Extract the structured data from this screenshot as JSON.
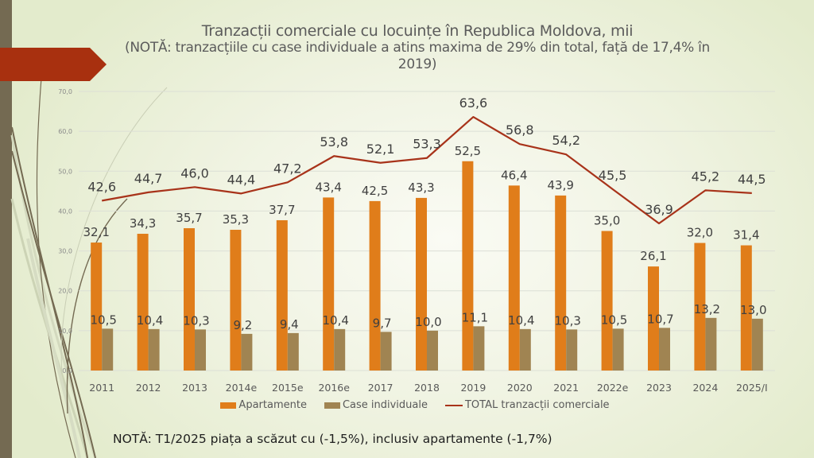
{
  "colors": {
    "apartamente": "#e07d1a",
    "case_individuale": "#a08452",
    "total": "#a8331a",
    "arrow": "#a8300f",
    "stripe": "#746a52"
  },
  "title": {
    "main": "Tranzacții comerciale cu locuințe în Republica Moldova, mii",
    "sub": "(NOTĂ: tranzacțiile cu case individuale a atins maxima de 29% din total, față de 17,4% în 2019)"
  },
  "note": "NOTĂ: T1/2025 piața a scăzut cu (-1,5%), inclusiv apartamente (-1,7%)",
  "legend": {
    "items": [
      {
        "label": "Apartamente",
        "kind": "bar"
      },
      {
        "label": "Case individuale",
        "kind": "bar"
      },
      {
        "label": "TOTAL tranzacții comerciale",
        "kind": "line"
      }
    ]
  },
  "chart_data": {
    "type": "bar",
    "title": "Tranzacții comerciale cu locuințe în Republica Moldova, mii",
    "xlabel": "",
    "ylabel": "",
    "ylim": [
      0,
      70
    ],
    "yticks": [
      "0,0",
      "10,0",
      "20,0",
      "30,0",
      "40,0",
      "50,0",
      "60,0",
      "70,0"
    ],
    "grid": true,
    "legend_position": "bottom",
    "categories": [
      "2011",
      "2012",
      "2013",
      "2014e",
      "2015e",
      "2016e",
      "2017",
      "2018",
      "2019",
      "2020",
      "2021",
      "2022e",
      "2023",
      "2024",
      "2025/I"
    ],
    "series": [
      {
        "name": "Apartamente",
        "type": "bar",
        "values": [
          32.1,
          34.3,
          35.7,
          35.3,
          37.7,
          43.4,
          42.5,
          43.3,
          52.5,
          46.4,
          43.9,
          35.0,
          26.1,
          32.0,
          31.4
        ],
        "labels": [
          "32,1",
          "34,3",
          "35,7",
          "35,3",
          "37,7",
          "43,4",
          "42,5",
          "43,3",
          "52,5",
          "46,4",
          "43,9",
          "35,0",
          "26,1",
          "32,0",
          "31,4"
        ]
      },
      {
        "name": "Case individuale",
        "type": "bar",
        "values": [
          10.5,
          10.4,
          10.3,
          9.2,
          9.4,
          10.4,
          9.7,
          10.0,
          11.1,
          10.4,
          10.3,
          10.5,
          10.7,
          13.2,
          13.0
        ],
        "labels": [
          "10,5",
          "10,4",
          "10,3",
          "9,2",
          "9,4",
          "10,4",
          "9,7",
          "10,0",
          "11,1",
          "10,4",
          "10,3",
          "10,5",
          "10,7",
          "13,2",
          "13,0"
        ]
      },
      {
        "name": "TOTAL tranzacții comerciale",
        "type": "line",
        "values": [
          42.6,
          44.7,
          46.0,
          44.4,
          47.2,
          53.8,
          52.1,
          53.3,
          63.6,
          56.8,
          54.2,
          45.5,
          36.9,
          45.2,
          44.5
        ],
        "labels": [
          "42,6",
          "44,7",
          "46,0",
          "44,4",
          "47,2",
          "53,8",
          "52,1",
          "53,3",
          "63,6",
          "56,8",
          "54,2",
          "45,5",
          "36,9",
          "45,2",
          "44,5"
        ]
      }
    ]
  }
}
